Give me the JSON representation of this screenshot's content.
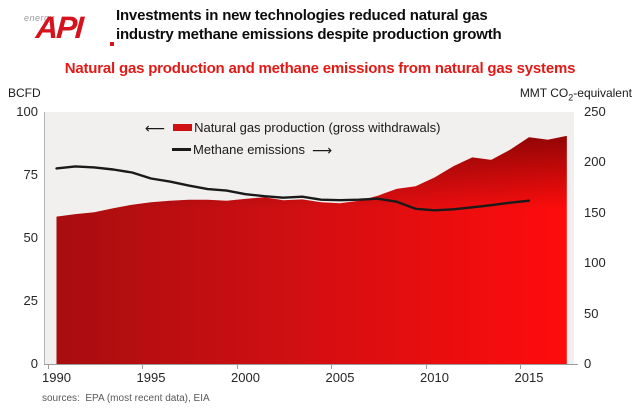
{
  "header": {
    "logo_energy": "energy",
    "logo_api": "API",
    "title_line1": "Investments in new technologies reduced natural gas",
    "title_line2": "industry methane emissions despite production growth"
  },
  "subtitle": "Natural gas production and methane emissions from natural gas systems",
  "axes": {
    "left_unit": "BCFD",
    "right_unit_prefix": "MMT CO",
    "right_unit_sub": "2",
    "right_unit_suffix": "-equivalent",
    "left_ticks": [
      100,
      75,
      50,
      25,
      0
    ],
    "right_ticks": [
      250,
      200,
      150,
      100,
      50,
      0
    ],
    "x_ticks": [
      1990,
      1995,
      2000,
      2005,
      2010,
      2015
    ]
  },
  "legend": {
    "left_arrow": "⟵",
    "right_arrow": "⟶",
    "production_label": "Natural gas production (gross withdrawals)",
    "emissions_label": "Methane emissions"
  },
  "footer": {
    "sources": "sources:  EPA (most recent data), EIA"
  },
  "colors": {
    "logo_red": "#d6121d",
    "subtitle_red": "#e11a17",
    "area_gradient": [
      "#a80d10",
      "#cf0f12",
      "#ff0c0c"
    ],
    "area_top_shade": "rgba(60,0,0,0.55)",
    "line_black": "#1a1a1a",
    "plot_bg": "#f1f0ee",
    "legend_swatch_red": "#cf1013"
  },
  "chart_data": {
    "type": "area+line",
    "title": "Natural gas production and methane emissions from natural gas systems",
    "left_axis": {
      "label": "BCFD",
      "range": [
        0,
        100
      ]
    },
    "right_axis": {
      "label": "MMT CO2-equivalent",
      "range": [
        0,
        250
      ]
    },
    "x_axis": {
      "range": [
        1990,
        2017
      ],
      "tick_interval": 5,
      "grid": false
    },
    "legend_position": "top-left-inside",
    "series": [
      {
        "name": "Natural gas production (gross withdrawals)",
        "type": "area",
        "axis": "left",
        "unit": "BCFD",
        "years": [
          1990,
          1991,
          1992,
          1993,
          1994,
          1995,
          1996,
          1997,
          1998,
          1999,
          2000,
          2001,
          2002,
          2003,
          2004,
          2005,
          2006,
          2007,
          2008,
          2009,
          2010,
          2011,
          2012,
          2013,
          2014,
          2015,
          2016,
          2017
        ],
        "values": [
          58.5,
          59.5,
          60.2,
          61.8,
          63.2,
          64.2,
          64.8,
          65.2,
          65.2,
          64.8,
          65.5,
          66.2,
          65.0,
          65.3,
          64.2,
          63.8,
          64.8,
          66.8,
          69.5,
          70.5,
          74.0,
          78.5,
          82.0,
          81.0,
          85.0,
          90.0,
          89.0,
          90.5
        ]
      },
      {
        "name": "Methane emissions",
        "type": "line",
        "axis": "right",
        "unit": "MMT CO2-equivalent",
        "years": [
          1990,
          1991,
          1992,
          1993,
          1994,
          1995,
          1996,
          1997,
          1998,
          1999,
          2000,
          2001,
          2002,
          2003,
          2004,
          2005,
          2006,
          2007,
          2008,
          2009,
          2010,
          2011,
          2012,
          2013,
          2014,
          2015
        ],
        "values": [
          194,
          196,
          195,
          193,
          190,
          184,
          181,
          177,
          173.5,
          172,
          168.5,
          166.5,
          165,
          166,
          163,
          162.5,
          163,
          164,
          161,
          154,
          152.5,
          153.5,
          155.5,
          157.5,
          160,
          162
        ]
      }
    ]
  }
}
